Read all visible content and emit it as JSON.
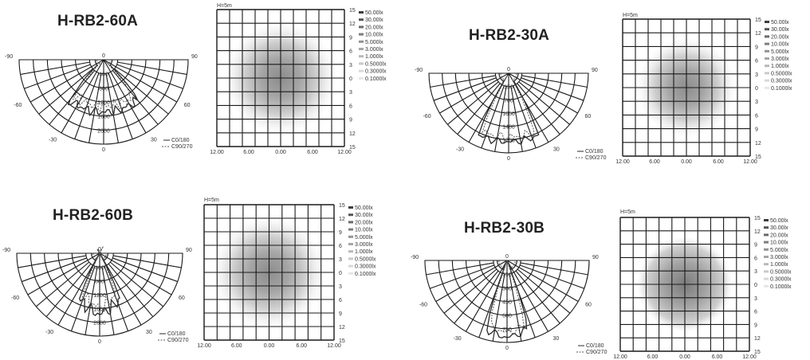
{
  "panels": [
    {
      "id": "p1",
      "title": "H-RB2-60A",
      "polar": {
        "angle_labels": [
          "-90",
          "90",
          "-60",
          "60",
          "-30",
          "30",
          "0",
          "0"
        ],
        "radial_labels": [
          "400",
          "800",
          "1200",
          "1600",
          "2000"
        ]
      },
      "legend": [
        "C0/180",
        "C90/270"
      ],
      "height_label": "H=5m",
      "x_ticks": [
        "12.00",
        "6.00",
        "0.00",
        "6.00",
        "12.00"
      ],
      "y_ticks": [
        "15",
        "12",
        "9",
        "6",
        "3",
        "0",
        "3",
        "6",
        "9",
        "12",
        "15"
      ],
      "lux_legend": [
        "50.00lx",
        "30.00lx",
        "20.00lx",
        "10.00lx",
        "5.000lx",
        "3.000lx",
        "1.000lx",
        "0.5000lx",
        "0.3000lx",
        "0.1000lx"
      ]
    },
    {
      "id": "p2",
      "title": "H-RB2-30A",
      "polar": {
        "angle_labels": [
          "-90",
          "90",
          "-60",
          "60",
          "-30",
          "30",
          "0",
          "0"
        ],
        "radial_labels": [
          "350",
          "700",
          "1050",
          "1400",
          "1750"
        ]
      },
      "legend": [
        "C0/180",
        "C90/270"
      ],
      "height_label": "H=5m",
      "x_ticks": [
        "12.00",
        "6.00",
        "0.00",
        "6.00",
        "12.00"
      ],
      "y_ticks": [
        "15",
        "12",
        "9",
        "6",
        "3",
        "0",
        "3",
        "6",
        "9",
        "12",
        "15"
      ],
      "lux_legend": [
        "50.00lx",
        "30.00lx",
        "20.00lx",
        "10.00lx",
        "5.000lx",
        "3.000lx",
        "1.000lx",
        "0.5000lx",
        "0.3000lx",
        "0.1000lx"
      ]
    },
    {
      "id": "p3",
      "title": "H-RB2-60B",
      "polar": {
        "angle_labels": [
          "-90",
          "90",
          "-60",
          "60",
          "-30",
          "30",
          "0",
          "0"
        ],
        "radial_labels": [
          "400",
          "800",
          "1200",
          "1600",
          "2000"
        ]
      },
      "legend": [
        "C0/180",
        "C90/270"
      ],
      "height_label": "H=5m",
      "x_ticks": [
        "12.00",
        "6.00",
        "0.00",
        "6.00",
        "12.00"
      ],
      "y_ticks": [
        "15",
        "12",
        "9",
        "6",
        "3",
        "0",
        "3",
        "6",
        "9",
        "12",
        "15"
      ],
      "lux_legend": [
        "50.00lx",
        "30.00lx",
        "20.00lx",
        "10.00lx",
        "5.000lx",
        "3.000lx",
        "1.000lx",
        "0.5000lx",
        "0.3000lx",
        "0.1000lx"
      ]
    },
    {
      "id": "p4",
      "title": "H-RB2-30B",
      "polar": {
        "angle_labels": [
          "-90",
          "90",
          "-60",
          "60",
          "-30",
          "30",
          "0",
          "0"
        ],
        "radial_labels": [
          "150",
          "300",
          "450",
          "600",
          "750"
        ]
      },
      "legend": [
        "C0/180",
        "C90/270"
      ],
      "height_label": "H=5m",
      "x_ticks": [
        "12.00",
        "6.00",
        "0.00",
        "6.00",
        "12.00"
      ],
      "y_ticks": [
        "15",
        "12",
        "9",
        "6",
        "3",
        "0",
        "3",
        "6",
        "9",
        "12",
        "15"
      ],
      "lux_legend": [
        "50.00lx",
        "30.00lx",
        "20.00lx",
        "10.00lx",
        "5.000lx",
        "3.000lx",
        "1.000lx",
        "0.5000lx",
        "0.3000lx",
        "0.1000lx"
      ]
    }
  ],
  "colors": {
    "line": "#2a2a2a",
    "grid": "#1a1a1a",
    "spot_center": "#8a8a8a",
    "spot_edge": "#e4e4e4"
  }
}
